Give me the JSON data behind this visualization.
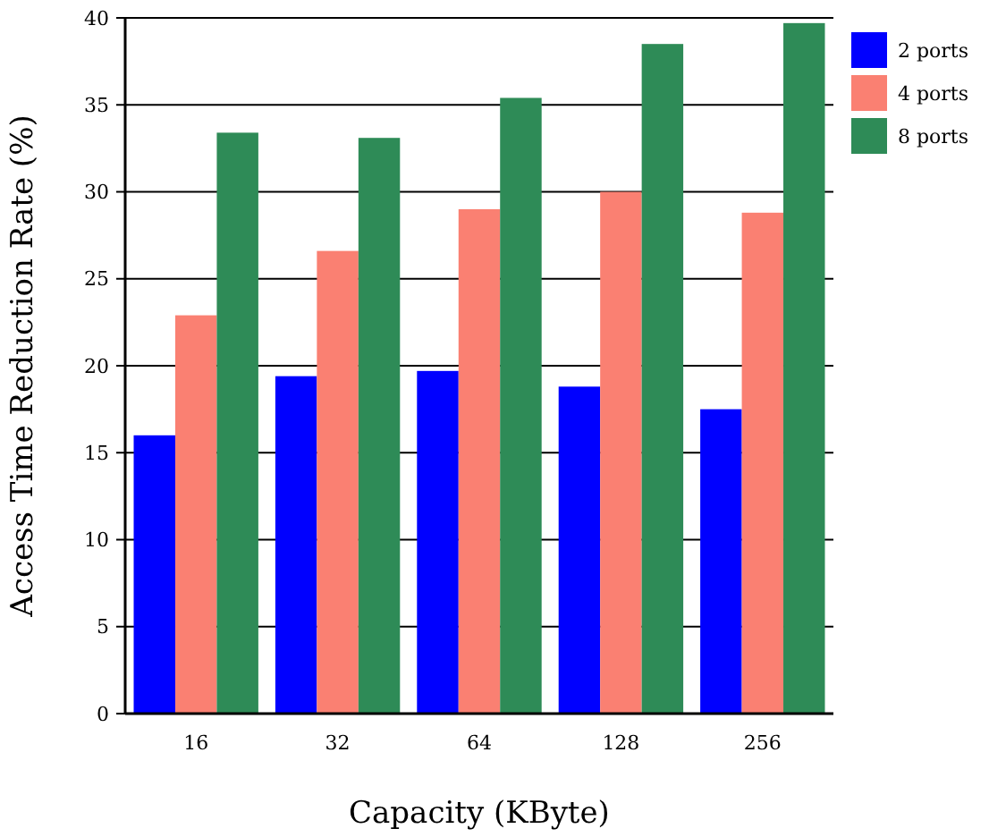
{
  "chart_data": {
    "type": "bar",
    "xlabel": "Capacity (KByte)",
    "ylabel": "Access Time Reduction Rate (%)",
    "categories": [
      "16",
      "32",
      "64",
      "128",
      "256"
    ],
    "series": [
      {
        "name": "2 ports",
        "color": "#0000ff",
        "values": [
          16.0,
          19.4,
          19.7,
          18.8,
          17.5
        ]
      },
      {
        "name": "4 ports",
        "color": "#fa8072",
        "values": [
          22.9,
          26.6,
          29.0,
          30.0,
          28.8
        ]
      },
      {
        "name": "8 ports",
        "color": "#2e8b57",
        "values": [
          33.4,
          33.1,
          35.4,
          38.5,
          39.7
        ]
      }
    ],
    "ylim": [
      0,
      40
    ],
    "yticks": [
      0,
      5,
      10,
      15,
      20,
      25,
      30,
      35,
      40
    ],
    "grid": "y",
    "legend": "top right"
  }
}
